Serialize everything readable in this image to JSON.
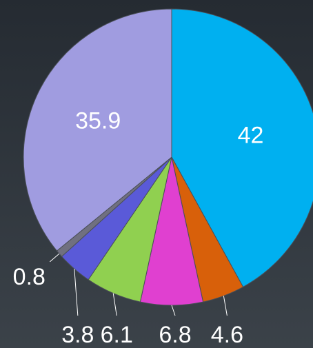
{
  "chart_data": {
    "type": "pie",
    "values": [
      42,
      4.6,
      6.8,
      6.1,
      3.8,
      0.8,
      35.9
    ],
    "colors": [
      "#00b0f0",
      "#d8600a",
      "#e040d0",
      "#90d050",
      "#5a5ad8",
      "#707080",
      "#a09ce0"
    ]
  }
}
